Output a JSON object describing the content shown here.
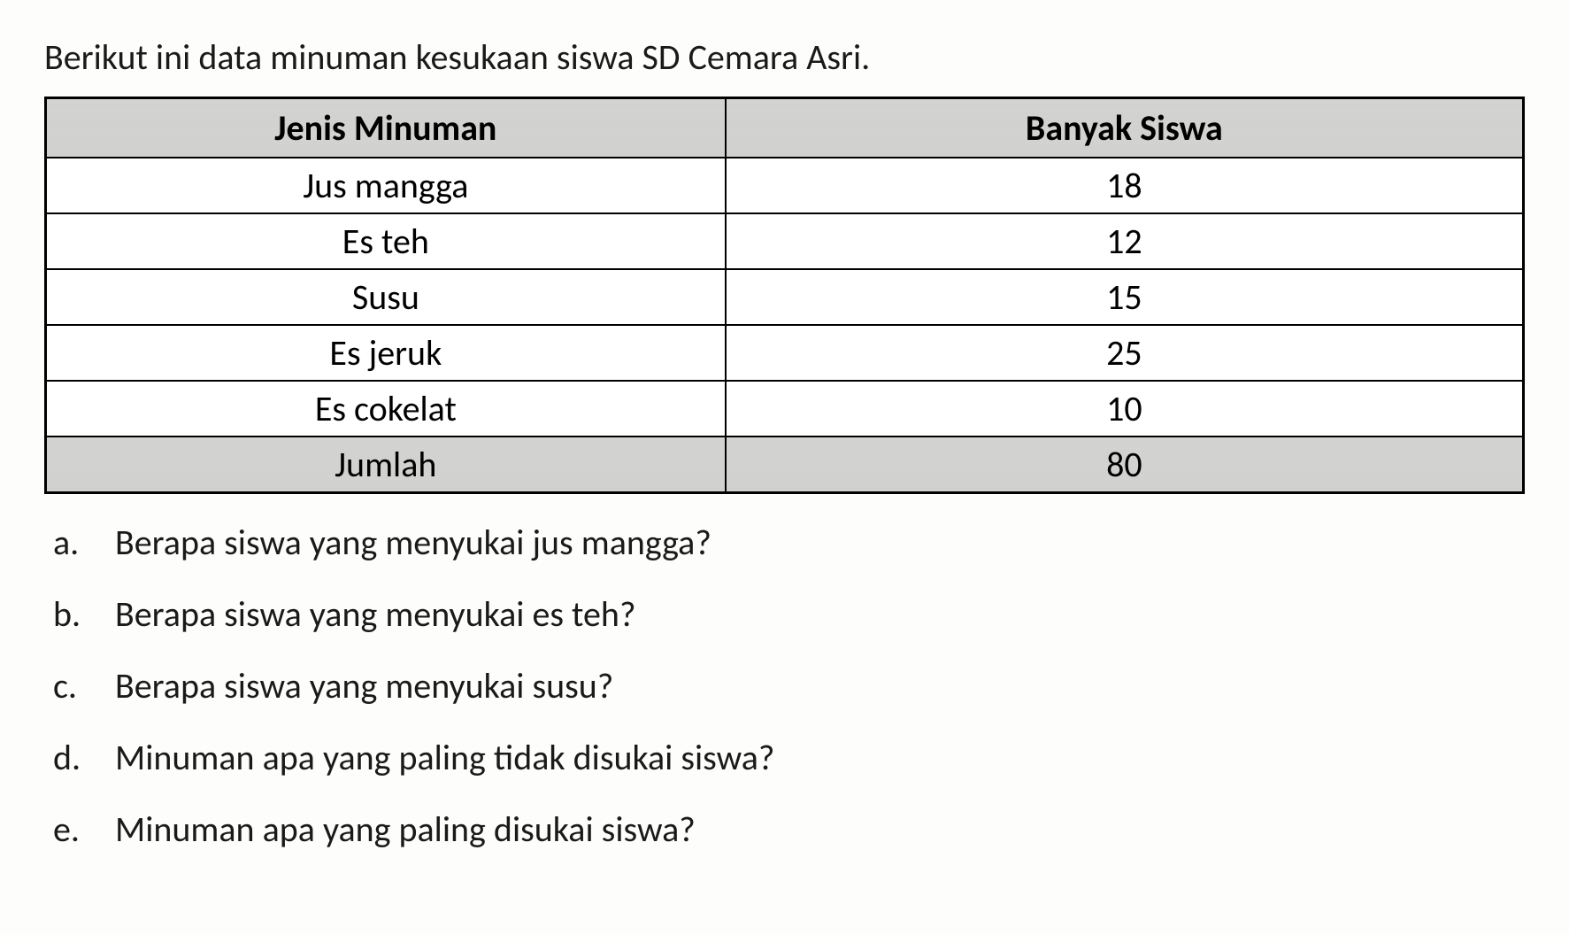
{
  "intro": "Berikut ini data minuman kesukaan siswa SD Cemara Asri.",
  "table": {
    "headers": {
      "col1": "Jenis Minuman",
      "col2": "Banyak Siswa"
    },
    "rows": [
      {
        "jenis": "Jus mangga",
        "banyak": "18"
      },
      {
        "jenis": "Es teh",
        "banyak": "12"
      },
      {
        "jenis": "Susu",
        "banyak": "15"
      },
      {
        "jenis": "Es jeruk",
        "banyak": "25"
      },
      {
        "jenis": "Es cokelat",
        "banyak": "10"
      }
    ],
    "total": {
      "label": "Jumlah",
      "value": "80"
    },
    "styling": {
      "header_bg_color": "#d8d8d6",
      "total_bg_color": "#d8d8d6",
      "cell_bg_color": "#ffffff",
      "border_color": "#000000",
      "outer_border_width": 3,
      "inner_border_width": 2,
      "font_size": 40,
      "header_font_weight": "bold",
      "text_align": "center",
      "col1_width_pct": 46,
      "col2_width_pct": 54
    }
  },
  "questions": [
    {
      "marker": "a.",
      "text": "Berapa siswa yang menyukai jus mangga?"
    },
    {
      "marker": "b.",
      "text": "Berapa siswa yang menyukai es teh?"
    },
    {
      "marker": "c.",
      "text": "Berapa siswa yang menyukai susu?"
    },
    {
      "marker": "d.",
      "text": "Minuman apa yang paling tidak disukai siswa?"
    },
    {
      "marker": "e.",
      "text": "Minuman apa yang paling disukai siswa?"
    }
  ],
  "page": {
    "background_color": "#fdfdfb",
    "text_color": "#1a1a1a",
    "font_family": "Calibri",
    "intro_font_size": 40,
    "question_font_size": 40,
    "question_marker_width": 70,
    "question_line_spacing": 32
  }
}
